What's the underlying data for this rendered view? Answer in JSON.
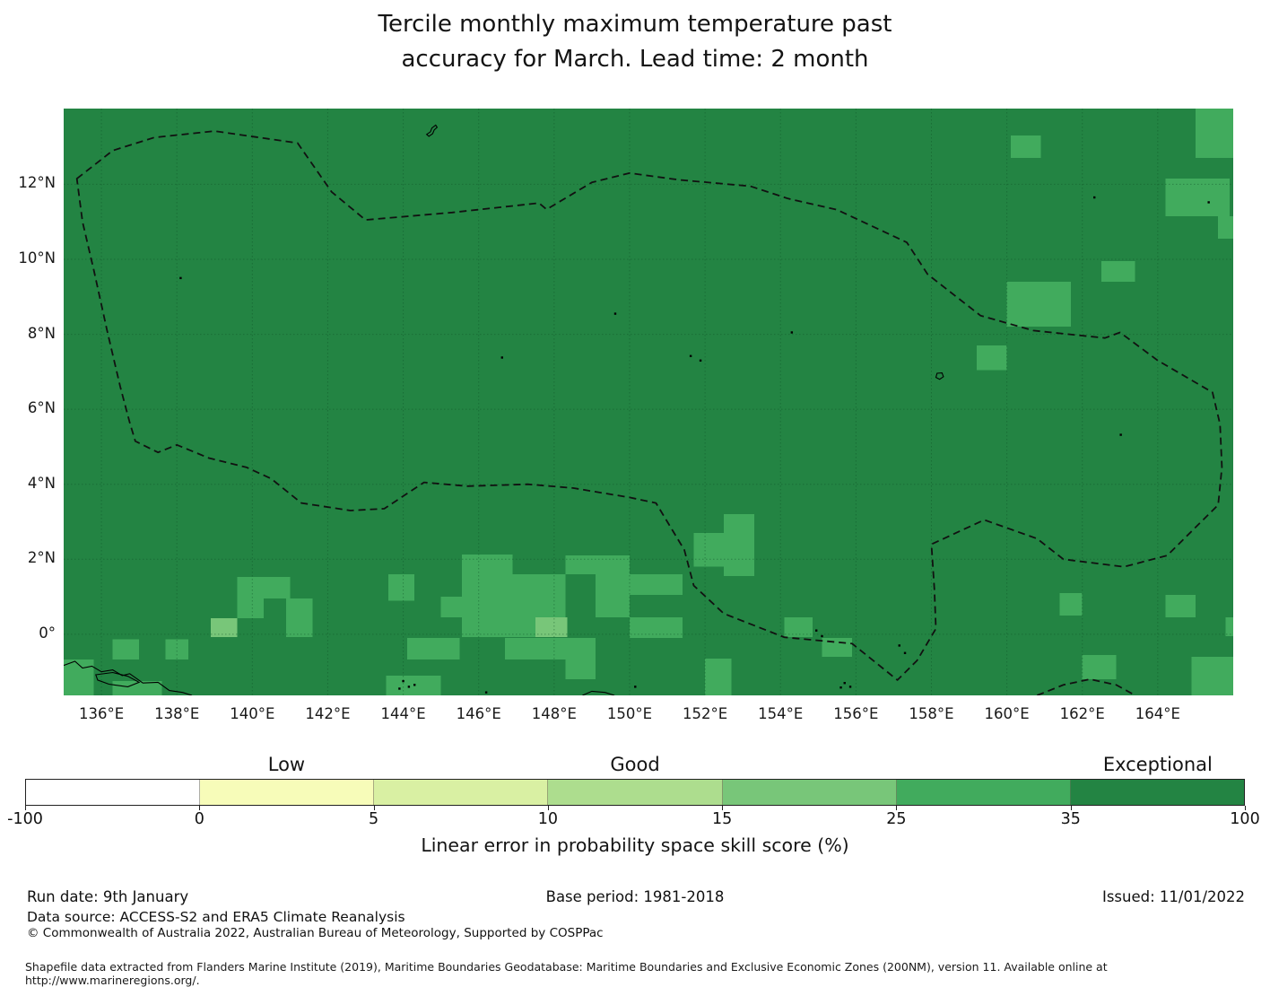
{
  "title": {
    "line1": "Tercile monthly maximum temperature past",
    "line2": "accuracy for March. Lead time: 2 month"
  },
  "chart_data": {
    "type": "heatmap",
    "subtype": "geographic skill-score map with EEZ boundaries",
    "title": "Tercile monthly maximum temperature past accuracy for March. Lead time: 2 month",
    "lon_range": [
      135.0,
      166.0
    ],
    "lat_range": [
      -1.63,
      14.02
    ],
    "x_ticks": [
      {
        "label": "136°E",
        "lon": 136
      },
      {
        "label": "138°E",
        "lon": 138
      },
      {
        "label": "140°E",
        "lon": 140
      },
      {
        "label": "142°E",
        "lon": 142
      },
      {
        "label": "144°E",
        "lon": 144
      },
      {
        "label": "146°E",
        "lon": 146
      },
      {
        "label": "148°E",
        "lon": 148
      },
      {
        "label": "150°E",
        "lon": 150
      },
      {
        "label": "152°E",
        "lon": 152
      },
      {
        "label": "154°E",
        "lon": 154
      },
      {
        "label": "156°E",
        "lon": 156
      },
      {
        "label": "158°E",
        "lon": 158
      },
      {
        "label": "160°E",
        "lon": 160
      },
      {
        "label": "162°E",
        "lon": 162
      },
      {
        "label": "164°E",
        "lon": 164
      }
    ],
    "y_ticks": [
      {
        "label": "12°N",
        "lat": 12
      },
      {
        "label": "10°N",
        "lat": 10
      },
      {
        "label": "8°N",
        "lat": 8
      },
      {
        "label": "6°N",
        "lat": 6
      },
      {
        "label": "4°N",
        "lat": 4
      },
      {
        "label": "2°N",
        "lat": 2
      },
      {
        "label": "0°",
        "lat": 0
      }
    ],
    "grid": {
      "on": true,
      "color": "#0f5128",
      "opacity": 0.45
    },
    "base_color": "#238443",
    "base_value_range": "35-100",
    "value_colors": {
      "25-35": "#41ab5d",
      "15-25": "#78c679"
    },
    "cells": [
      {
        "lon": [
          160.1,
          160.9
        ],
        "lat": [
          12.7,
          13.3
        ],
        "value_range": "25-35"
      },
      {
        "lon": [
          165.0,
          166.0
        ],
        "lat": [
          12.7,
          14.02
        ],
        "value_range": "25-35"
      },
      {
        "lon": [
          164.2,
          165.9
        ],
        "lat": [
          11.15,
          12.15
        ],
        "value_range": "25-35"
      },
      {
        "lon": [
          165.6,
          166.0
        ],
        "lat": [
          10.55,
          11.15
        ],
        "value_range": "25-35"
      },
      {
        "lon": [
          160.0,
          161.7
        ],
        "lat": [
          8.2,
          9.4
        ],
        "value_range": "25-35"
      },
      {
        "lon": [
          162.5,
          163.4
        ],
        "lat": [
          9.4,
          9.95
        ],
        "value_range": "25-35"
      },
      {
        "lon": [
          159.2,
          160.0
        ],
        "lat": [
          7.05,
          7.7
        ],
        "value_range": "25-35"
      },
      {
        "lon": [
          152.5,
          153.3
        ],
        "lat": [
          1.55,
          3.2
        ],
        "value_range": "25-35"
      },
      {
        "lon": [
          151.7,
          152.5
        ],
        "lat": [
          1.8,
          2.7
        ],
        "value_range": "25-35"
      },
      {
        "lon": [
          148.3,
          150.0
        ],
        "lat": [
          1.6,
          2.1
        ],
        "value_range": "25-35"
      },
      {
        "lon": [
          149.1,
          150.0
        ],
        "lat": [
          0.45,
          1.6
        ],
        "value_range": "25-35"
      },
      {
        "lon": [
          150.0,
          151.4
        ],
        "lat": [
          1.05,
          1.6
        ],
        "value_range": "25-35"
      },
      {
        "lon": [
          150.0,
          151.4
        ],
        "lat": [
          -0.1,
          0.45
        ],
        "value_range": "25-35"
      },
      {
        "lon": [
          145.55,
          146.9
        ],
        "lat": [
          1.6,
          2.13
        ],
        "value_range": "25-35"
      },
      {
        "lon": [
          145.55,
          148.3
        ],
        "lat": [
          -0.07,
          1.6
        ],
        "value_range": "25-35"
      },
      {
        "lon": [
          145.0,
          145.55
        ],
        "lat": [
          0.45,
          1.0
        ],
        "value_range": "25-35"
      },
      {
        "lon": [
          147.5,
          148.35
        ],
        "lat": [
          -0.07,
          0.45
        ],
        "value_range": "15-25"
      },
      {
        "lon": [
          144.1,
          145.5
        ],
        "lat": [
          -0.67,
          -0.1
        ],
        "value_range": "25-35"
      },
      {
        "lon": [
          146.7,
          149.1
        ],
        "lat": [
          -0.67,
          -0.1
        ],
        "value_range": "25-35"
      },
      {
        "lon": [
          148.3,
          149.1
        ],
        "lat": [
          -1.2,
          -0.67
        ],
        "value_range": "25-35"
      },
      {
        "lon": [
          143.55,
          145.0
        ],
        "lat": [
          -1.63,
          -1.1
        ],
        "value_range": "25-35"
      },
      {
        "lon": [
          143.6,
          144.3
        ],
        "lat": [
          0.9,
          1.6
        ],
        "value_range": "25-35"
      },
      {
        "lon": [
          139.6,
          140.3
        ],
        "lat": [
          0.43,
          1.53
        ],
        "value_range": "25-35"
      },
      {
        "lon": [
          140.3,
          141.0
        ],
        "lat": [
          0.96,
          1.53
        ],
        "value_range": "25-35"
      },
      {
        "lon": [
          140.9,
          141.6
        ],
        "lat": [
          -0.07,
          0.96
        ],
        "value_range": "25-35"
      },
      {
        "lon": [
          138.9,
          139.6
        ],
        "lat": [
          -0.07,
          0.43
        ],
        "value_range": "15-25"
      },
      {
        "lon": [
          136.3,
          137.0
        ],
        "lat": [
          -0.67,
          -0.14
        ],
        "value_range": "25-35"
      },
      {
        "lon": [
          137.7,
          138.3
        ],
        "lat": [
          -0.67,
          -0.14
        ],
        "value_range": "25-35"
      },
      {
        "lon": [
          135.0,
          135.8
        ],
        "lat": [
          -1.63,
          -0.67
        ],
        "value_range": "25-35"
      },
      {
        "lon": [
          136.3,
          137.6
        ],
        "lat": [
          -1.63,
          -1.25
        ],
        "value_range": "25-35"
      },
      {
        "lon": [
          154.1,
          154.85
        ],
        "lat": [
          -0.07,
          0.45
        ],
        "value_range": "25-35"
      },
      {
        "lon": [
          155.1,
          155.9
        ],
        "lat": [
          -0.6,
          -0.1
        ],
        "value_range": "25-35"
      },
      {
        "lon": [
          152.0,
          152.7
        ],
        "lat": [
          -1.63,
          -0.65
        ],
        "value_range": "25-35"
      },
      {
        "lon": [
          161.4,
          162.0
        ],
        "lat": [
          0.5,
          1.1
        ],
        "value_range": "25-35"
      },
      {
        "lon": [
          162.0,
          162.9
        ],
        "lat": [
          -1.2,
          -0.55
        ],
        "value_range": "25-35"
      },
      {
        "lon": [
          164.2,
          165.0
        ],
        "lat": [
          0.45,
          1.05
        ],
        "value_range": "25-35"
      },
      {
        "lon": [
          165.8,
          166.0
        ],
        "lat": [
          -0.05,
          0.45
        ],
        "value_range": "25-35"
      },
      {
        "lon": [
          164.9,
          166.0
        ],
        "lat": [
          -1.63,
          -0.6
        ],
        "value_range": "25-35"
      }
    ],
    "eez_boundary": [
      [
        135.35,
        12.15
      ],
      [
        136.3,
        12.9
      ],
      [
        137.4,
        13.25
      ],
      [
        139.0,
        13.42
      ],
      [
        141.2,
        13.1
      ],
      [
        142.1,
        11.8
      ],
      [
        143.0,
        11.05
      ],
      [
        145.3,
        11.25
      ],
      [
        147.6,
        11.5
      ],
      [
        147.8,
        11.33
      ],
      [
        149.0,
        12.05
      ],
      [
        150.0,
        12.3
      ],
      [
        151.3,
        12.12
      ],
      [
        153.2,
        11.95
      ],
      [
        154.2,
        11.62
      ],
      [
        155.5,
        11.32
      ],
      [
        157.35,
        10.45
      ],
      [
        157.9,
        9.6
      ],
      [
        159.3,
        8.5
      ],
      [
        160.7,
        8.1
      ],
      [
        162.6,
        7.9
      ],
      [
        163.0,
        8.05
      ],
      [
        164.0,
        7.3
      ],
      [
        165.45,
        6.45
      ],
      [
        165.65,
        5.6
      ],
      [
        165.7,
        4.45
      ],
      [
        165.6,
        3.45
      ],
      [
        164.9,
        2.75
      ],
      [
        164.25,
        2.1
      ],
      [
        163.1,
        1.8
      ],
      [
        161.5,
        2.0
      ],
      [
        160.8,
        2.55
      ],
      [
        159.4,
        3.05
      ],
      [
        158.0,
        2.4
      ],
      [
        158.08,
        1.2
      ],
      [
        158.12,
        0.15
      ],
      [
        157.62,
        -0.7
      ],
      [
        157.1,
        -1.22
      ],
      [
        155.9,
        -0.25
      ],
      [
        154.1,
        -0.08
      ],
      [
        152.5,
        0.55
      ],
      [
        151.7,
        1.3
      ],
      [
        151.45,
        2.25
      ],
      [
        150.7,
        3.5
      ],
      [
        150.0,
        3.65
      ],
      [
        148.5,
        3.9
      ],
      [
        147.3,
        4.0
      ],
      [
        145.7,
        3.95
      ],
      [
        144.55,
        4.05
      ],
      [
        143.5,
        3.35
      ],
      [
        142.6,
        3.3
      ],
      [
        141.3,
        3.5
      ],
      [
        140.5,
        4.15
      ],
      [
        139.85,
        4.45
      ],
      [
        138.85,
        4.7
      ],
      [
        138.0,
        5.05
      ],
      [
        137.5,
        4.85
      ],
      [
        136.9,
        5.15
      ],
      [
        136.75,
        5.65
      ],
      [
        136.5,
        6.6
      ],
      [
        136.15,
        8.1
      ],
      [
        135.8,
        9.7
      ],
      [
        135.5,
        11.0
      ]
    ],
    "secondary_boundary": [
      [
        160.8,
        -1.63
      ],
      [
        161.5,
        -1.35
      ],
      [
        162.2,
        -1.2
      ],
      [
        162.9,
        -1.35
      ],
      [
        163.4,
        -1.63
      ]
    ],
    "coastlines": [
      [
        [
          135.0,
          -0.83
        ],
        [
          135.3,
          -0.72
        ],
        [
          135.5,
          -0.9
        ],
        [
          135.75,
          -0.85
        ],
        [
          136.0,
          -1.0
        ],
        [
          136.3,
          -0.95
        ],
        [
          136.55,
          -1.1
        ],
        [
          136.75,
          -1.05
        ],
        [
          137.1,
          -1.3
        ],
        [
          137.5,
          -1.28
        ],
        [
          137.8,
          -1.5
        ],
        [
          138.15,
          -1.55
        ],
        [
          138.4,
          -1.63
        ]
      ],
      [
        [
          148.75,
          -1.63
        ],
        [
          149.0,
          -1.52
        ],
        [
          149.35,
          -1.55
        ],
        [
          149.6,
          -1.63
        ]
      ]
    ],
    "island_outlines": [
      [
        [
          135.85,
          -1.08
        ],
        [
          136.3,
          -1.02
        ],
        [
          136.7,
          -1.12
        ],
        [
          137.0,
          -1.28
        ],
        [
          136.7,
          -1.4
        ],
        [
          136.2,
          -1.33
        ],
        [
          135.9,
          -1.22
        ],
        [
          135.85,
          -1.08
        ]
      ],
      [
        [
          144.68,
          13.28
        ],
        [
          144.78,
          13.35
        ],
        [
          144.82,
          13.45
        ],
        [
          144.9,
          13.52
        ],
        [
          144.86,
          13.58
        ],
        [
          144.76,
          13.5
        ],
        [
          144.72,
          13.4
        ],
        [
          144.62,
          13.33
        ],
        [
          144.68,
          13.28
        ]
      ],
      [
        [
          158.12,
          6.85
        ],
        [
          158.22,
          6.8
        ],
        [
          158.32,
          6.87
        ],
        [
          158.28,
          6.97
        ],
        [
          158.15,
          6.96
        ],
        [
          158.12,
          6.85
        ]
      ]
    ],
    "island_dots": [
      [
        138.1,
        9.5
      ],
      [
        151.62,
        7.42
      ],
      [
        151.88,
        7.3
      ],
      [
        163.02,
        5.32
      ],
      [
        154.3,
        8.05
      ],
      [
        149.62,
        8.55
      ],
      [
        146.62,
        7.38
      ],
      [
        162.32,
        11.65
      ],
      [
        165.35,
        11.52
      ],
      [
        154.95,
        0.1
      ],
      [
        155.1,
        -0.05
      ],
      [
        157.15,
        -0.3
      ],
      [
        157.3,
        -0.5
      ],
      [
        144.0,
        -1.25
      ],
      [
        144.15,
        -1.4
      ],
      [
        143.9,
        -1.45
      ],
      [
        144.3,
        -1.35
      ],
      [
        155.7,
        -1.3
      ],
      [
        155.85,
        -1.4
      ],
      [
        155.6,
        -1.42
      ],
      [
        146.2,
        -1.55
      ],
      [
        150.15,
        -1.4
      ]
    ],
    "colorbar": {
      "tick_labels": [
        "-100",
        "0",
        "5",
        "10",
        "15",
        "25",
        "35",
        "100"
      ],
      "segment_colors": [
        "#ffffff",
        "#f7fcb9",
        "#d9f0a3",
        "#addd8e",
        "#78c679",
        "#41ab5d",
        "#238443"
      ],
      "category_labels": [
        {
          "text": "Low",
          "segment_center": 1.5
        },
        {
          "text": "Good",
          "segment_center": 3.5
        },
        {
          "text": "Exceptional",
          "segment_center": 6.5
        }
      ],
      "caption": "Linear error in probability space skill score (%)"
    }
  },
  "footer": {
    "run_date": "Run date: 9th January",
    "base_period": "Base period: 1981-2018",
    "issued": "Issued: 11/01/2022",
    "data_source": "Data source: ACCESS-S2 and ERA5 Climate Reanalysis",
    "copyright": "© Commonwealth of Australia 2022, Australian Bureau of Meteorology, Supported by COSPPac",
    "shapefile_note": "Shapefile data extracted from Flanders Marine Institute (2019), Maritime Boundaries Geodatabase: Maritime Boundaries and Exclusive Economic Zones (200NM), version 11. Available online at http://www.marineregions.org/."
  }
}
